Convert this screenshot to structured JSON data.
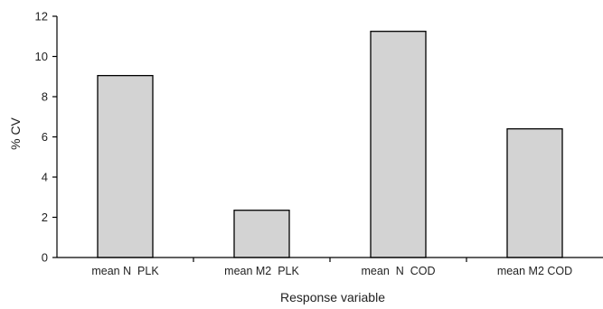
{
  "chart_data": {
    "type": "bar",
    "categories": [
      "mean N  PLK",
      "mean M2  PLK",
      "mean  N  COD",
      "mean M2 COD"
    ],
    "values": [
      9.05,
      2.35,
      11.25,
      6.4
    ],
    "title": "",
    "xlabel": "Response variable",
    "ylabel": "% CV",
    "ylim": [
      0,
      12
    ],
    "yticks": [
      "0",
      "2",
      "4",
      "6",
      "8",
      "10",
      "12"
    ],
    "grid": false,
    "legend": "none",
    "bar_color": "#d3d3d3",
    "bar_edge_color": "#000000"
  }
}
